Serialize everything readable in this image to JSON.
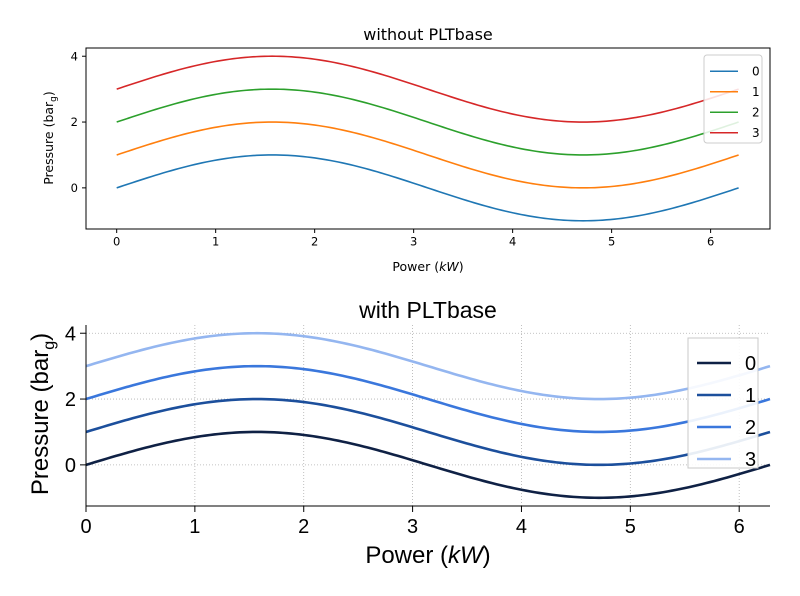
{
  "chart_data": [
    {
      "type": "line",
      "title": "without PLTbase",
      "xlabel_text": "Power (",
      "xlabel_unit": "kW",
      "xlabel_close": ")",
      "ylabel_text": "Pressure (bar",
      "ylabel_sub": "g",
      "ylabel_close": ")",
      "xlim": [
        -0.31,
        6.6
      ],
      "ylim": [
        -1.25,
        4.25
      ],
      "xticks": [
        0,
        1,
        2,
        3,
        4,
        5,
        6
      ],
      "yticks": [
        0,
        2,
        4
      ],
      "grid": false,
      "legend_position": "top-right",
      "x_range": [
        0,
        6.283
      ],
      "series": [
        {
          "name": "0",
          "function": "sin(x) + 0",
          "offset": 0,
          "color": "#1f77b4"
        },
        {
          "name": "1",
          "function": "sin(x) + 1",
          "offset": 1,
          "color": "#ff7f0e"
        },
        {
          "name": "2",
          "function": "sin(x) + 2",
          "offset": 2,
          "color": "#2ca02c"
        },
        {
          "name": "3",
          "function": "sin(x) + 3",
          "offset": 3,
          "color": "#d62728"
        }
      ]
    },
    {
      "type": "line",
      "title": "with PLTbase",
      "xlabel_text": "Power (",
      "xlabel_unit": "kW",
      "xlabel_close": ")",
      "ylabel_text": "Pressure (bar",
      "ylabel_sub": "g",
      "ylabel_close": ")",
      "xlim": [
        0,
        6.283
      ],
      "ylim": [
        -1.25,
        4.25
      ],
      "xticks": [
        0,
        1,
        2,
        3,
        4,
        5,
        6
      ],
      "yticks": [
        0,
        2,
        4
      ],
      "grid": true,
      "legend_position": "top-right",
      "x_range": [
        0,
        6.283
      ],
      "series": [
        {
          "name": "0",
          "function": "sin(x) + 0",
          "offset": 0,
          "color": "#0f2145"
        },
        {
          "name": "1",
          "function": "sin(x) + 1",
          "offset": 1,
          "color": "#1c4f9c"
        },
        {
          "name": "2",
          "function": "sin(x) + 2",
          "offset": 2,
          "color": "#3a77dc"
        },
        {
          "name": "3",
          "function": "sin(x) + 3",
          "offset": 3,
          "color": "#94b6f0"
        }
      ]
    }
  ]
}
